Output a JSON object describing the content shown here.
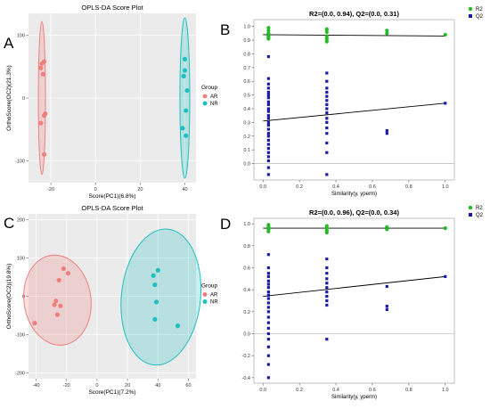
{
  "colors": {
    "ar": "#f08080",
    "nr": "#20c0c0",
    "r2": "#22bb22",
    "q2": "#1a1aa8"
  },
  "chart_data": [
    {
      "panel_letter": "A",
      "type": "scatter",
      "title": "OPLS-DA Score Plot",
      "xlabel": "Score(PC1)(6.8%)",
      "ylabel": "OrthoScore(OC2)(21.3%)",
      "xlim": [
        -30,
        45
      ],
      "ylim": [
        -135,
        135
      ],
      "xticks": [
        -20,
        0,
        20,
        40
      ],
      "yticks": [
        -100,
        0,
        100
      ],
      "legend": {
        "title": "Group",
        "entries": [
          "AR",
          "NR"
        ],
        "placement": "right"
      },
      "series": [
        {
          "name": "AR",
          "x": [
            -24,
            -23,
            -24.5,
            -23.5,
            -22.5,
            -23,
            -24.5,
            -23
          ],
          "y": [
            55,
            58,
            48,
            38,
            -25,
            -28,
            -40,
            -90
          ]
        },
        {
          "name": "NR",
          "x": [
            40,
            39.5,
            41,
            40.5,
            39,
            40.5,
            40
          ],
          "y": [
            62,
            35,
            12,
            -20,
            -48,
            -60,
            44
          ]
        }
      ],
      "ellipses": [
        {
          "group": "AR",
          "cx": -24,
          "cy": 0,
          "rx": 1.6,
          "ry": 122
        },
        {
          "group": "NR",
          "cx": 40,
          "cy": 0,
          "rx": 2.2,
          "ry": 128
        }
      ]
    },
    {
      "panel_letter": "B",
      "type": "scatter",
      "title": "R2=(0.0, 0.94), Q2=(0.0, 0.31)",
      "xlabel": "Similarity(y, yperm)",
      "ylabel": "",
      "xlim": [
        -0.05,
        1.05
      ],
      "ylim": [
        -0.12,
        1.05
      ],
      "xticks": [
        0.0,
        0.2,
        0.4,
        0.6,
        0.8,
        1.0
      ],
      "yticks": [
        0.0,
        0.1,
        0.2,
        0.3,
        0.4,
        0.5,
        0.6,
        0.7,
        0.8,
        0.9,
        1.0
      ],
      "legend": {
        "entries": [
          "R2",
          "Q2"
        ],
        "placement": "top-right"
      },
      "r2_points": {
        "x": [
          0.03,
          0.03,
          0.03,
          0.03,
          0.03,
          0.03,
          0.35,
          0.35,
          0.35,
          0.35,
          0.35,
          0.68,
          0.68,
          1.0
        ],
        "y": [
          0.99,
          0.97,
          0.95,
          0.93,
          0.92,
          0.91,
          0.98,
          0.96,
          0.93,
          0.91,
          0.89,
          0.97,
          0.95,
          0.94
        ]
      },
      "q2_points": {
        "x": [
          0.03,
          0.03,
          0.03,
          0.03,
          0.03,
          0.03,
          0.03,
          0.03,
          0.03,
          0.03,
          0.03,
          0.03,
          0.03,
          0.03,
          0.03,
          0.03,
          0.03,
          0.03,
          0.03,
          0.03,
          0.03,
          0.03,
          0.03,
          0.03,
          0.03,
          0.03,
          0.35,
          0.35,
          0.35,
          0.35,
          0.35,
          0.35,
          0.35,
          0.35,
          0.35,
          0.35,
          0.35,
          0.35,
          0.35,
          0.35,
          0.35,
          0.35,
          0.68,
          0.68,
          1.0
        ],
        "y": [
          0.78,
          0.62,
          0.58,
          0.55,
          0.52,
          0.5,
          0.48,
          0.45,
          0.43,
          0.4,
          0.38,
          0.35,
          0.33,
          0.3,
          0.28,
          0.25,
          0.22,
          0.2,
          0.17,
          0.14,
          0.11,
          0.08,
          0.05,
          0.02,
          -0.03,
          -0.08,
          0.66,
          0.6,
          0.55,
          0.52,
          0.49,
          0.46,
          0.43,
          0.4,
          0.37,
          0.33,
          0.3,
          0.26,
          0.22,
          0.15,
          0.08,
          -0.08,
          0.24,
          0.22,
          0.44
        ]
      },
      "r2_line": {
        "x": [
          0.0,
          1.0
        ],
        "y": [
          0.94,
          0.93
        ]
      },
      "q2_line": {
        "x": [
          0.0,
          1.0
        ],
        "y": [
          0.31,
          0.44
        ]
      }
    },
    {
      "panel_letter": "C",
      "type": "scatter",
      "title": "OPLS-DA Score Plot",
      "xlabel": "Score(PC1)(7.2%)",
      "ylabel": "OrthoScore(OC2)(19.8%)",
      "xlim": [
        -45,
        65
      ],
      "ylim": [
        -215,
        215
      ],
      "xticks": [
        -40,
        -20,
        0,
        20,
        40,
        60
      ],
      "yticks": [
        -200,
        -100,
        0,
        100,
        200
      ],
      "legend": {
        "title": "Group",
        "entries": [
          "AR",
          "NR"
        ],
        "placement": "right"
      },
      "series": [
        {
          "name": "AR",
          "x": [
            -22,
            -19,
            -25,
            -27,
            -24,
            -28,
            -26,
            -41
          ],
          "y": [
            72,
            60,
            42,
            -12,
            -25,
            -22,
            -48,
            -70
          ]
        },
        {
          "name": "NR",
          "x": [
            40,
            37,
            38,
            39,
            53,
            38
          ],
          "y": [
            68,
            54,
            30,
            -15,
            -77,
            -60
          ]
        }
      ],
      "ellipses": [
        {
          "group": "AR",
          "cx": -26,
          "cy": -10,
          "rx": 22,
          "ry": 118,
          "rotation_deg": -8
        },
        {
          "group": "NR",
          "cx": 42,
          "cy": -2,
          "rx": 26,
          "ry": 178,
          "rotation_deg": 6
        }
      ]
    },
    {
      "panel_letter": "D",
      "type": "scatter",
      "title": "R2=(0.0, 0.96), Q2=(0.0, 0.34)",
      "xlabel": "Similarity(y, yperm)",
      "ylabel": "",
      "xlim": [
        -0.05,
        1.05
      ],
      "ylim": [
        -0.45,
        1.05
      ],
      "xticks": [
        0.0,
        0.2,
        0.4,
        0.6,
        0.8,
        1.0
      ],
      "yticks": [
        -0.4,
        -0.2,
        0.0,
        0.2,
        0.4,
        0.6,
        0.8,
        1.0
      ],
      "legend": {
        "entries": [
          "R2",
          "Q2"
        ],
        "placement": "top-right"
      },
      "r2_points": {
        "x": [
          0.03,
          0.03,
          0.03,
          0.03,
          0.03,
          0.35,
          0.35,
          0.35,
          0.35,
          0.68,
          0.68,
          1.0
        ],
        "y": [
          0.99,
          0.97,
          0.96,
          0.95,
          0.93,
          0.98,
          0.96,
          0.94,
          0.92,
          0.97,
          0.95,
          0.96
        ]
      },
      "q2_points": {
        "x": [
          0.03,
          0.03,
          0.03,
          0.03,
          0.03,
          0.03,
          0.03,
          0.03,
          0.03,
          0.03,
          0.03,
          0.03,
          0.03,
          0.03,
          0.03,
          0.03,
          0.03,
          0.03,
          0.03,
          0.03,
          0.03,
          0.03,
          0.35,
          0.35,
          0.35,
          0.35,
          0.35,
          0.35,
          0.35,
          0.35,
          0.35,
          0.35,
          0.35,
          0.68,
          0.68,
          0.68,
          1.0
        ],
        "y": [
          0.72,
          0.6,
          0.55,
          0.52,
          0.48,
          0.45,
          0.42,
          0.38,
          0.35,
          0.32,
          0.28,
          0.24,
          0.2,
          0.15,
          0.1,
          0.05,
          0.0,
          -0.05,
          -0.12,
          -0.2,
          -0.28,
          -0.4,
          0.68,
          0.6,
          0.55,
          0.5,
          0.46,
          0.42,
          0.38,
          0.34,
          0.3,
          0.26,
          -0.05,
          0.43,
          0.25,
          0.22,
          0.52
        ]
      },
      "r2_line": {
        "x": [
          0.0,
          1.0
        ],
        "y": [
          0.96,
          0.96
        ]
      },
      "q2_line": {
        "x": [
          0.0,
          1.0
        ],
        "y": [
          0.34,
          0.52
        ]
      }
    }
  ]
}
